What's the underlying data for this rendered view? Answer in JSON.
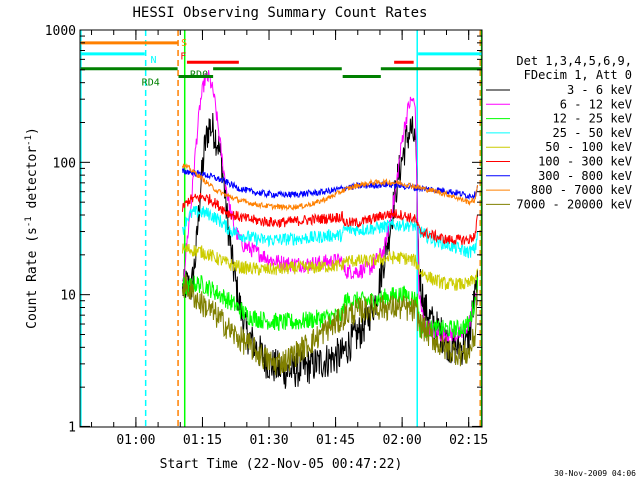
{
  "chart_data": {
    "type": "line",
    "title": "HESSI Observing Summary Count Rates",
    "xlabel": "Start Time (22-Nov-05 00:47:22)",
    "ylabel": "Count Rate (s-1 detector-1)",
    "ylabel_parts": {
      "pre": "Count Rate (s",
      "sup1": "-1",
      "mid": " detector",
      "sup2": "-1",
      "post": ")"
    },
    "yscale": "log",
    "ylim": [
      1,
      1000
    ],
    "xlim": [
      47.4,
      138.0
    ],
    "y_ticks": [
      {
        "v": 1,
        "label": "1"
      },
      {
        "v": 10,
        "label": "10"
      },
      {
        "v": 100,
        "label": "100"
      },
      {
        "v": 1000,
        "label": "1000"
      }
    ],
    "x_ticks": [
      {
        "v": 60,
        "label": "01:00"
      },
      {
        "v": 75,
        "label": "01:15"
      },
      {
        "v": 90,
        "label": "01:30"
      },
      {
        "v": 105,
        "label": "01:45"
      },
      {
        "v": 120,
        "label": "02:00"
      },
      {
        "v": 135,
        "label": "02:15"
      }
    ],
    "legend_header": [
      "Det 1,3,4,5,6,9,",
      "FDecim 1, Att 0"
    ],
    "series": [
      {
        "name": "3 - 6 keV",
        "color": "#000000",
        "noise": 0.14,
        "points": [
          [
            70.5,
            11
          ],
          [
            71.5,
            12
          ],
          [
            72.5,
            11
          ],
          [
            73.5,
            20
          ],
          [
            74.5,
            60
          ],
          [
            75.5,
            130
          ],
          [
            76.5,
            190
          ],
          [
            77.5,
            175
          ],
          [
            78.5,
            140
          ],
          [
            79.5,
            90
          ],
          [
            80.5,
            40
          ],
          [
            81.5,
            20
          ],
          [
            82.5,
            12
          ],
          [
            83.5,
            8
          ],
          [
            85,
            5
          ],
          [
            87,
            4
          ],
          [
            90,
            3
          ],
          [
            94,
            2.6
          ],
          [
            98,
            2.8
          ],
          [
            102,
            3.1
          ],
          [
            105,
            3.4
          ],
          [
            106.5,
            3.5
          ],
          [
            108,
            4.2
          ],
          [
            111,
            5.5
          ],
          [
            114,
            9
          ],
          [
            117,
            28
          ],
          [
            119,
            75
          ],
          [
            121,
            150
          ],
          [
            122,
            180
          ],
          [
            123,
            140
          ],
          [
            123.8,
            15
          ],
          [
            125,
            8
          ],
          [
            127,
            6
          ],
          [
            129,
            5
          ],
          [
            131,
            4
          ],
          [
            133.5,
            4
          ],
          [
            135,
            4.5
          ],
          [
            136,
            8
          ],
          [
            137,
            12
          ]
        ]
      },
      {
        "name": "6 - 12 keV",
        "color": "#ff00ff",
        "noise": 0.06,
        "points": [
          [
            70.5,
            11
          ],
          [
            71.5,
            25
          ],
          [
            72.5,
            50
          ],
          [
            73.5,
            130
          ],
          [
            74.5,
            280
          ],
          [
            75.5,
            420
          ],
          [
            76.5,
            440
          ],
          [
            77.5,
            330
          ],
          [
            78.5,
            190
          ],
          [
            79.5,
            100
          ],
          [
            80.5,
            60
          ],
          [
            81.5,
            40
          ],
          [
            82.5,
            30
          ],
          [
            84,
            24
          ],
          [
            87,
            21
          ],
          [
            91,
            18
          ],
          [
            95,
            17
          ],
          [
            99,
            17
          ],
          [
            102,
            17.5
          ],
          [
            105,
            18
          ],
          [
            106.5,
            18
          ],
          [
            107,
            15
          ],
          [
            110,
            15
          ],
          [
            113,
            16
          ],
          [
            116,
            22
          ],
          [
            118.5,
            60
          ],
          [
            120,
            150
          ],
          [
            121.5,
            270
          ],
          [
            122.3,
            300
          ],
          [
            123,
            260
          ],
          [
            123.8,
            10
          ],
          [
            125,
            6
          ],
          [
            128,
            5
          ],
          [
            131,
            5
          ],
          [
            133.5,
            5
          ],
          [
            135,
            6
          ],
          [
            137,
            10
          ]
        ]
      },
      {
        "name": "12 - 25 keV",
        "color": "#00ff00",
        "noise": 0.07,
        "points": [
          [
            70.5,
            12
          ],
          [
            71.5,
            11
          ],
          [
            73,
            12
          ],
          [
            75,
            12
          ],
          [
            77,
            11
          ],
          [
            79,
            10
          ],
          [
            82,
            8.5
          ],
          [
            85,
            7
          ],
          [
            88,
            6.5
          ],
          [
            92,
            6.2
          ],
          [
            96,
            6.2
          ],
          [
            100,
            6.5
          ],
          [
            104,
            6.8
          ],
          [
            106.5,
            7
          ],
          [
            107,
            9
          ],
          [
            110,
            9
          ],
          [
            113,
            9
          ],
          [
            116,
            9.5
          ],
          [
            119,
            10
          ],
          [
            121,
            10
          ],
          [
            123.5,
            9
          ],
          [
            124,
            5.5
          ],
          [
            127,
            5.5
          ],
          [
            130,
            5.5
          ],
          [
            133,
            5.5
          ],
          [
            135,
            6
          ],
          [
            136.5,
            9
          ],
          [
            137,
            12
          ]
        ]
      },
      {
        "name": "25 - 50 keV",
        "color": "#00ffff",
        "noise": 0.05,
        "points": [
          [
            70.5,
            30
          ],
          [
            71.5,
            38
          ],
          [
            73,
            42
          ],
          [
            75,
            42
          ],
          [
            77,
            40
          ],
          [
            79,
            36
          ],
          [
            81,
            31
          ],
          [
            84,
            28
          ],
          [
            88,
            26
          ],
          [
            92,
            26
          ],
          [
            96,
            26.5
          ],
          [
            100,
            27
          ],
          [
            104,
            28
          ],
          [
            106.5,
            28
          ],
          [
            107,
            31
          ],
          [
            110,
            31
          ],
          [
            113,
            31.5
          ],
          [
            117,
            33
          ],
          [
            120,
            34
          ],
          [
            123,
            33
          ],
          [
            124,
            30
          ],
          [
            127,
            26
          ],
          [
            130,
            24
          ],
          [
            133,
            22
          ],
          [
            135,
            21
          ],
          [
            136.5,
            22
          ],
          [
            137,
            30
          ]
        ]
      },
      {
        "name": "50 - 100 keV",
        "color": "#cccc00",
        "noise": 0.05,
        "points": [
          [
            70.5,
            22
          ],
          [
            72,
            22
          ],
          [
            75,
            21
          ],
          [
            78,
            19
          ],
          [
            81,
            17
          ],
          [
            84,
            16
          ],
          [
            88,
            15.5
          ],
          [
            92,
            15.5
          ],
          [
            96,
            16
          ],
          [
            100,
            16
          ],
          [
            104,
            16.5
          ],
          [
            106.5,
            16.5
          ],
          [
            107,
            18
          ],
          [
            110,
            18
          ],
          [
            113,
            18
          ],
          [
            117,
            19
          ],
          [
            120,
            19
          ],
          [
            123,
            18
          ],
          [
            124,
            15
          ],
          [
            127,
            13
          ],
          [
            130,
            12
          ],
          [
            133,
            12
          ],
          [
            135,
            12
          ],
          [
            137,
            14
          ]
        ]
      },
      {
        "name": "100 - 300 keV",
        "color": "#ff0000",
        "noise": 0.04,
        "points": [
          [
            70.5,
            45
          ],
          [
            72,
            52
          ],
          [
            75,
            55
          ],
          [
            77,
            52
          ],
          [
            79,
            46
          ],
          [
            81,
            41
          ],
          [
            84,
            38
          ],
          [
            88,
            36
          ],
          [
            92,
            35
          ],
          [
            96,
            36
          ],
          [
            100,
            37
          ],
          [
            104,
            38
          ],
          [
            106.5,
            39
          ],
          [
            107,
            35
          ],
          [
            110,
            35
          ],
          [
            113,
            37
          ],
          [
            116,
            40
          ],
          [
            118,
            41
          ],
          [
            120,
            40
          ],
          [
            123,
            37
          ],
          [
            124,
            30
          ],
          [
            127,
            28
          ],
          [
            130,
            26
          ],
          [
            133,
            26
          ],
          [
            135,
            26
          ],
          [
            136.5,
            28
          ],
          [
            137,
            40
          ]
        ]
      },
      {
        "name": "300 - 800 keV",
        "color": "#0000ff",
        "noise": 0.025,
        "points": [
          [
            70.5,
            85
          ],
          [
            72,
            85
          ],
          [
            74,
            82
          ],
          [
            76,
            80
          ],
          [
            78,
            76
          ],
          [
            80,
            72
          ],
          [
            83,
            64
          ],
          [
            86,
            60
          ],
          [
            89,
            58
          ],
          [
            92,
            57
          ],
          [
            95,
            57
          ],
          [
            98,
            58
          ],
          [
            101,
            59
          ],
          [
            104,
            61
          ],
          [
            107,
            64
          ],
          [
            110,
            66
          ],
          [
            113,
            67
          ],
          [
            116,
            68
          ],
          [
            119,
            67
          ],
          [
            122,
            65
          ],
          [
            125,
            63
          ],
          [
            128,
            62
          ],
          [
            131,
            60
          ],
          [
            133,
            58
          ],
          [
            135,
            56
          ],
          [
            136.5,
            57
          ],
          [
            137,
            66
          ]
        ]
      },
      {
        "name": "800 - 7000 keV",
        "color": "#ff8000",
        "noise": 0.02,
        "points": [
          [
            70.5,
            95
          ],
          [
            72,
            90
          ],
          [
            74,
            80
          ],
          [
            76,
            70
          ],
          [
            78,
            62
          ],
          [
            80,
            57
          ],
          [
            83,
            52
          ],
          [
            86,
            49
          ],
          [
            89,
            47
          ],
          [
            92,
            46
          ],
          [
            95,
            46
          ],
          [
            98,
            47
          ],
          [
            101,
            50
          ],
          [
            104,
            55
          ],
          [
            107,
            62
          ],
          [
            110,
            67
          ],
          [
            113,
            70
          ],
          [
            116,
            71
          ],
          [
            119,
            70
          ],
          [
            122,
            67
          ],
          [
            125,
            63
          ],
          [
            128,
            60
          ],
          [
            131,
            56
          ],
          [
            133,
            53
          ],
          [
            135,
            50
          ],
          [
            136.5,
            52
          ],
          [
            137,
            68
          ]
        ]
      },
      {
        "name": "7000 - 20000 keV",
        "color": "#808000",
        "noise": 0.1,
        "points": [
          [
            70.5,
            12
          ],
          [
            72,
            11
          ],
          [
            74,
            9
          ],
          [
            76,
            8
          ],
          [
            78,
            7
          ],
          [
            80,
            6
          ],
          [
            82,
            5
          ],
          [
            84,
            4.5
          ],
          [
            86,
            4
          ],
          [
            88,
            3.5
          ],
          [
            91,
            3
          ],
          [
            94,
            3.2
          ],
          [
            97,
            3.8
          ],
          [
            100,
            4.5
          ],
          [
            103,
            5.5
          ],
          [
            106.5,
            6.5
          ],
          [
            107,
            7
          ],
          [
            110,
            7.5
          ],
          [
            113,
            8
          ],
          [
            117,
            8
          ],
          [
            120,
            8
          ],
          [
            123,
            7.5
          ],
          [
            124,
            6
          ],
          [
            126,
            5
          ],
          [
            129,
            4
          ],
          [
            131,
            3.8
          ],
          [
            133,
            3.6
          ],
          [
            135,
            3.6
          ],
          [
            136.5,
            5
          ],
          [
            137,
            13
          ]
        ]
      }
    ],
    "vlines": [
      {
        "x": 47.6,
        "color": "#00ffff",
        "style": "solid"
      },
      {
        "x": 62.2,
        "color": "#00ffff",
        "style": "dashed"
      },
      {
        "x": 69.5,
        "color": "#ff8000",
        "style": "dashed"
      },
      {
        "x": 71.0,
        "color": "#00ff00",
        "style": "solid"
      },
      {
        "x": 123.4,
        "color": "#00ffff",
        "style": "solid"
      },
      {
        "x": 137.6,
        "color": "#ff8000",
        "style": "dashed"
      },
      {
        "x": 137.9,
        "color": "#00ff00",
        "style": "solid"
      }
    ],
    "flag_bars": [
      {
        "color": "#ff8000",
        "y": 800,
        "segments": [
          [
            47.6,
            69.4
          ]
        ],
        "label": "S",
        "label_x": 70.2
      },
      {
        "color": "#00ffff",
        "y": 660,
        "segments": [
          [
            47.6,
            62.0
          ],
          [
            123.6,
            138.0
          ]
        ],
        "label": "N",
        "label_x": 63.3
      },
      {
        "color": "#ff0000",
        "y": 570,
        "segments": [
          [
            71.5,
            83.2
          ],
          [
            118.2,
            122.6
          ]
        ],
        "label": "F",
        "label_x": 70.0
      },
      {
        "color": "#008000",
        "y": 510,
        "segments": [
          [
            47.6,
            69.4
          ],
          [
            77.4,
            106.4
          ],
          [
            115.2,
            137.9
          ]
        ],
        "label": "RD0",
        "label_x": 72.2
      },
      {
        "color": "#008000",
        "y": 445,
        "segments": [
          [
            69.6,
            77.4
          ],
          [
            106.6,
            115.2
          ]
        ],
        "label": "RD4",
        "label_x": 61.3
      }
    ],
    "grid": false,
    "legend_placement": "right",
    "timestamp": "30-Nov-2009 04:06"
  }
}
